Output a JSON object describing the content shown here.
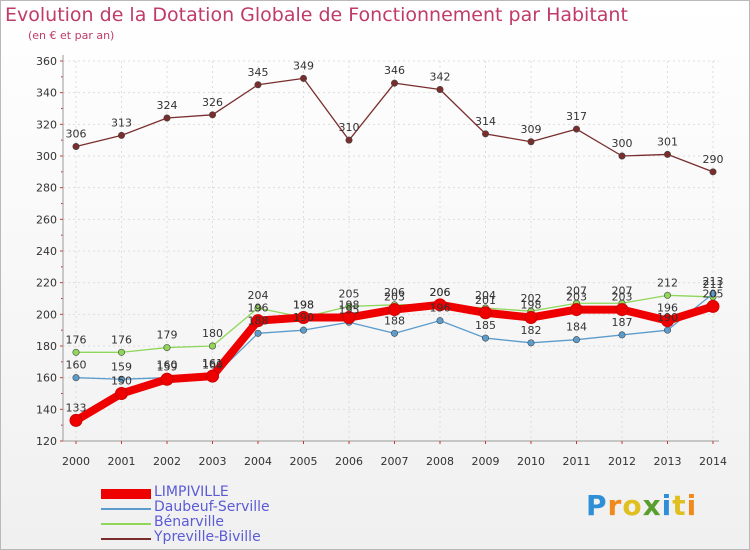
{
  "chart_data": {
    "type": "line",
    "title": "Evolution de la Dotation Globale de Fonctionnement par Habitant",
    "subtitle": "(en € et par an)",
    "xlabel": "",
    "ylabel": "",
    "ylim": [
      120,
      360
    ],
    "y_ticks": [
      "120",
      "140",
      "160",
      "180",
      "200",
      "220",
      "240",
      "260",
      "280",
      "300",
      "320",
      "340",
      "360"
    ],
    "categories": [
      "2000",
      "2001",
      "2002",
      "2003",
      "2004",
      "2005",
      "2006",
      "2007",
      "2008",
      "2009",
      "2010",
      "2011",
      "2012",
      "2013",
      "2014"
    ],
    "grid": true,
    "legend_position": "bottom-left",
    "series": [
      {
        "name": "Ypreville-Biville",
        "color": "#7a2d2d",
        "values": [
          306,
          313,
          324,
          326,
          345,
          349,
          310,
          346,
          342,
          314,
          309,
          317,
          300,
          301,
          290
        ]
      },
      {
        "name": "Bénarville",
        "color": "#8fd65a",
        "values": [
          176,
          176,
          179,
          180,
          204,
          198,
          205,
          206,
          206,
          204,
          202,
          207,
          207,
          212,
          211
        ]
      },
      {
        "name": "Daubeuf-Serville",
        "color": "#5c9ccc",
        "values": [
          160,
          159,
          160,
          160,
          188,
          190,
          195,
          188,
          196,
          185,
          182,
          184,
          187,
          190,
          213
        ]
      },
      {
        "name": "LIMPIVILLE",
        "color": "#ee0000",
        "values": [
          133,
          150,
          159,
          161,
          196,
          198,
          198,
          203,
          206,
          201,
          198,
          203,
          203,
          196,
          205
        ]
      }
    ],
    "data_labels": [
      [
        "306",
        "313",
        "324",
        "326",
        "345",
        "349",
        "310",
        "346",
        "342",
        "314",
        "309",
        "317",
        "300",
        "301",
        "290"
      ],
      [
        "176",
        "176",
        "179",
        "180",
        "204",
        "198",
        "205",
        "206",
        "206",
        "204",
        "202",
        "207",
        "207",
        "212",
        "211"
      ],
      [
        "160",
        "159",
        "160",
        "160",
        "188",
        "190",
        "195",
        "188",
        "196",
        "185",
        "182",
        "184",
        "187",
        "190",
        "213"
      ],
      [
        "133",
        "150",
        "159",
        "161",
        "196",
        "198",
        "198",
        "203",
        "206",
        "201",
        "198",
        "203",
        "203",
        "196",
        "205"
      ]
    ],
    "legend": [
      "LIMPIVILLE",
      "Daubeuf-Serville",
      "Bénarville",
      "Ypreville-Biville"
    ]
  },
  "brand": {
    "logo_letters": [
      "P",
      "r",
      "o",
      "x",
      "i",
      "t",
      "i"
    ],
    "logo_colors": [
      "#2f8fd6",
      "#f08a1c",
      "#e0c020",
      "#5a9f2e",
      "#2f8fd6",
      "#e0c020",
      "#f08a1c"
    ]
  }
}
